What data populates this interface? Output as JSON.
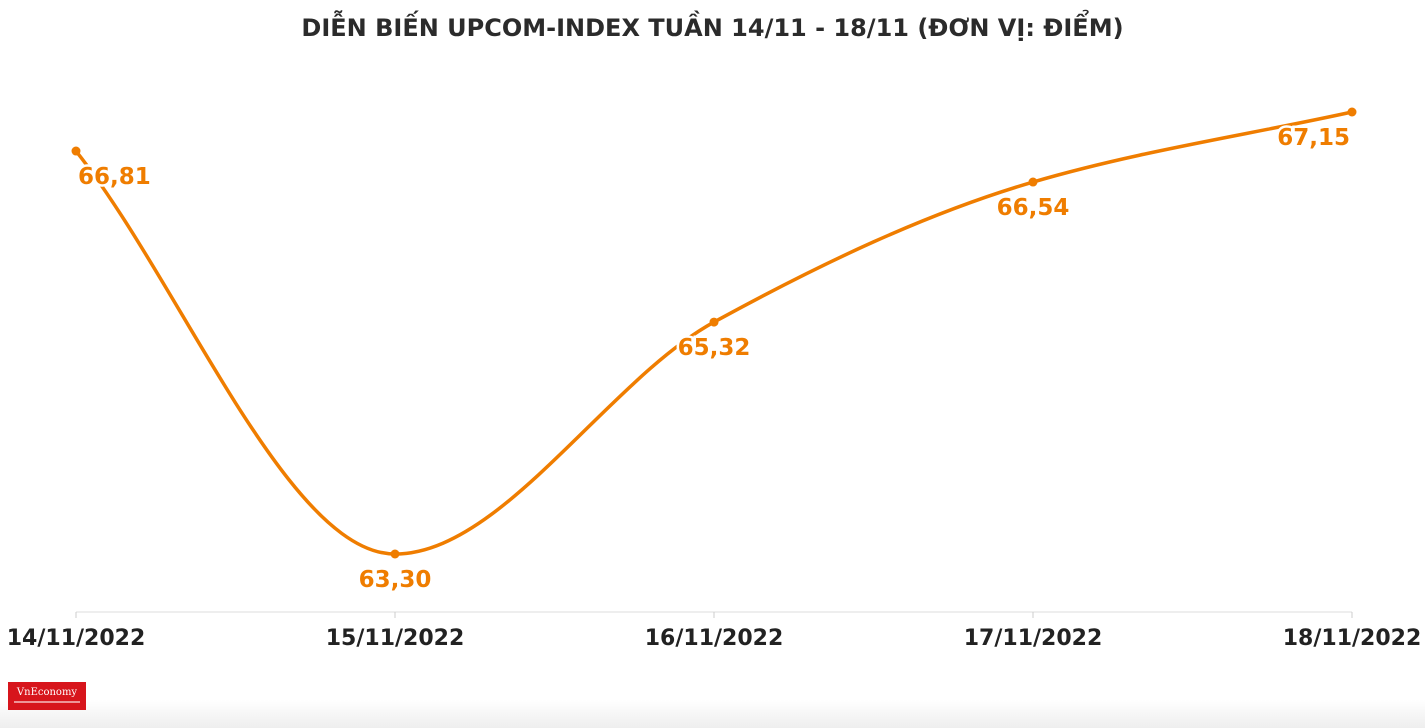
{
  "title": "DIỄN BIẾN UPCOM-INDEX TUẦN 14/11 - 18/11 (ĐƠN VỊ: ĐIỂM)",
  "colors": {
    "line": "#ef7d00",
    "label": "#ef7d00",
    "axis_text": "#222222",
    "title": "#2b2b2b"
  },
  "chart_data": {
    "type": "line",
    "title": "DIỄN BIẾN UPCOM-INDEX TUẦN 14/11 - 18/11 (ĐƠN VỊ: ĐIỂM)",
    "categories": [
      "14/11/2022",
      "15/11/2022",
      "16/11/2022",
      "17/11/2022",
      "18/11/2022"
    ],
    "values": [
      66.81,
      63.3,
      65.32,
      66.54,
      67.15
    ],
    "data_labels": [
      "66,81",
      "63,30",
      "65,32",
      "66,54",
      "67,15"
    ],
    "xlabel": "",
    "ylabel": "",
    "ylim": [
      63.3,
      67.15
    ],
    "grid": false,
    "smooth": true
  },
  "logo": {
    "brand": "VnEconomy"
  }
}
